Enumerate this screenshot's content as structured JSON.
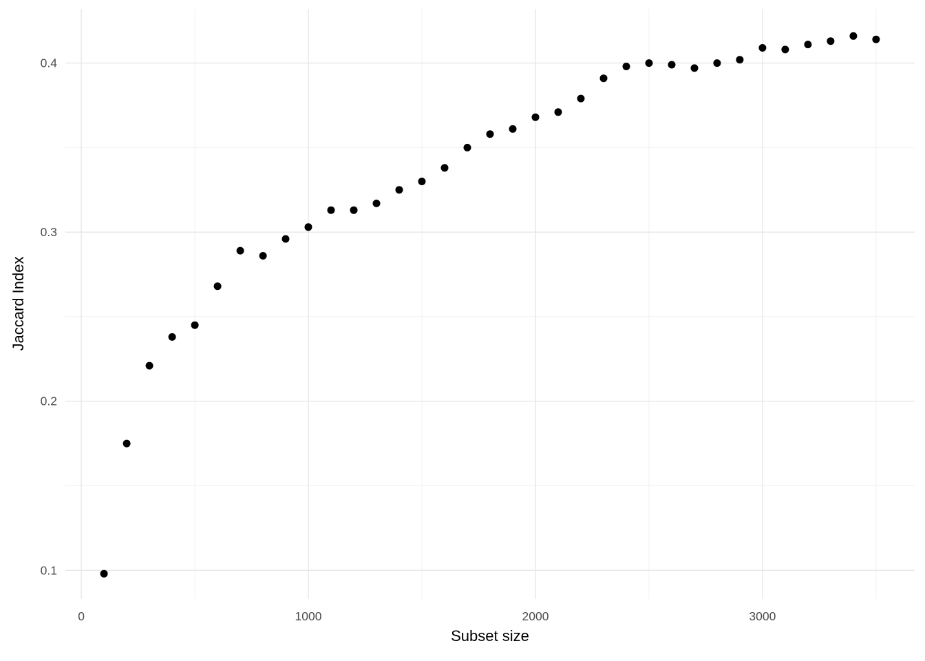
{
  "chart_data": {
    "type": "scatter",
    "title": "",
    "xlabel": "Subset size",
    "ylabel": "Jaccard Index",
    "x": [
      100,
      200,
      300,
      400,
      500,
      600,
      700,
      800,
      900,
      1000,
      1100,
      1200,
      1300,
      1400,
      1500,
      1600,
      1700,
      1800,
      1900,
      2000,
      2100,
      2200,
      2300,
      2400,
      2500,
      2600,
      2700,
      2800,
      2900,
      3000,
      3100,
      3200,
      3300,
      3400,
      3500
    ],
    "y": [
      0.098,
      0.175,
      0.221,
      0.238,
      0.245,
      0.268,
      0.289,
      0.286,
      0.296,
      0.303,
      0.313,
      0.313,
      0.317,
      0.325,
      0.33,
      0.338,
      0.35,
      0.358,
      0.361,
      0.368,
      0.371,
      0.379,
      0.391,
      0.398,
      0.4,
      0.399,
      0.397,
      0.4,
      0.402,
      0.409,
      0.408,
      0.411,
      0.413,
      0.416,
      0.414
    ],
    "xlim": [
      -70,
      3670
    ],
    "ylim": [
      0.083,
      0.432
    ],
    "x_major_ticks": [
      0,
      1000,
      2000,
      3000
    ],
    "x_tick_labels": [
      "0",
      "1000",
      "2000",
      "3000"
    ],
    "x_minor_ticks": [
      500,
      1500,
      2500,
      3500
    ],
    "y_major_ticks": [
      0.1,
      0.2,
      0.3,
      0.4
    ],
    "y_tick_labels": [
      "0.1",
      "0.2",
      "0.3",
      "0.4"
    ],
    "y_minor_ticks": [
      0.15,
      0.25,
      0.35
    ],
    "grid": "major+minor",
    "legend": "none",
    "colors": {
      "point": "#000000",
      "grid_major": "#e7e7e7",
      "grid_minor": "#f1f1f1",
      "tick_label": "#4d4d4d",
      "axis_title": "#000000",
      "background": "#ffffff"
    }
  }
}
